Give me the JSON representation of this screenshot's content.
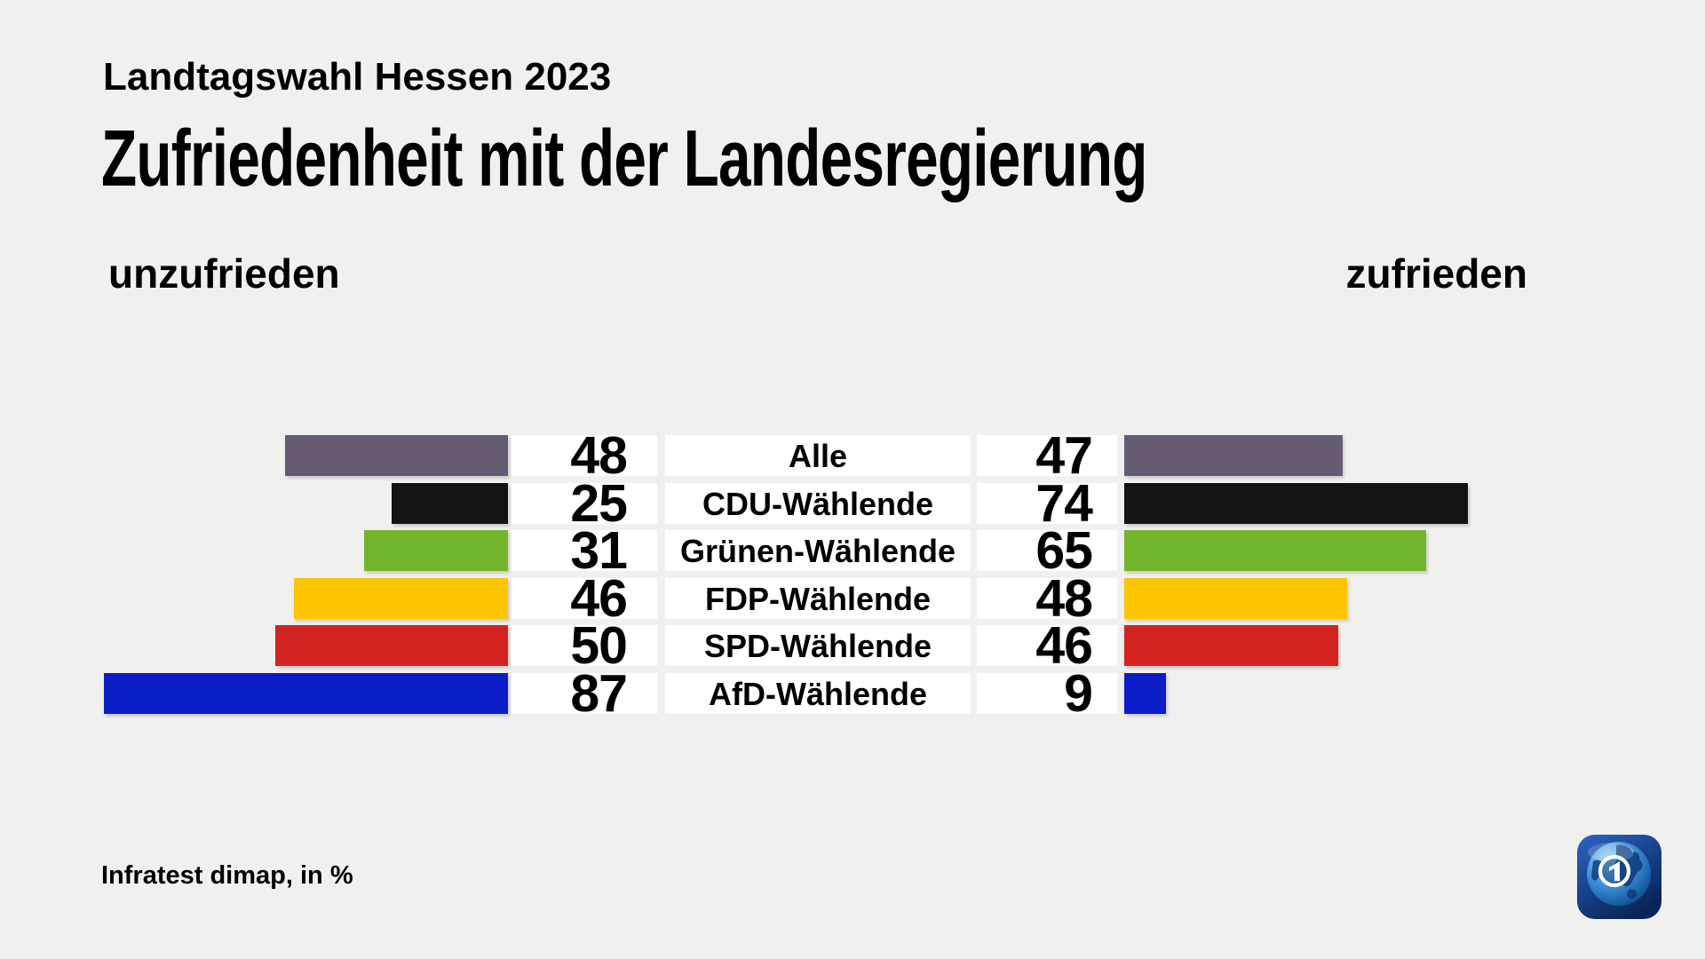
{
  "header": {
    "subtitle": "Landtagswahl Hessen 2023",
    "title": "Zufriedenheit mit der Landesregierung"
  },
  "axis": {
    "left_label": "unzufrieden",
    "right_label": "zufrieden"
  },
  "chart_data": {
    "type": "bar",
    "orientation": "diverging-horizontal",
    "unit": "%",
    "xlim": [
      0,
      100
    ],
    "grid": false,
    "legend_position": "top-axis-labels",
    "categories": [
      "Alle",
      "CDU-Wählende",
      "Grünen-Wählende",
      "FDP-Wählende",
      "SPD-Wählende",
      "AfD-Wählende"
    ],
    "series": [
      {
        "name": "unzufrieden",
        "values": [
          48,
          25,
          31,
          46,
          50,
          87
        ]
      },
      {
        "name": "zufrieden",
        "values": [
          47,
          74,
          65,
          48,
          46,
          9
        ]
      }
    ],
    "row_colors": [
      "#675a73",
      "#161413",
      "#71b52c",
      "#fdc500",
      "#d22321",
      "#0b1dc6"
    ]
  },
  "footer": {
    "source": "Infratest dimap, in %"
  },
  "logo_colors": {
    "tile_top": "#2b64c6",
    "tile_bottom": "#092558",
    "globe_light": "#9ed7f8",
    "globe_dark": "#0b3a74"
  },
  "page_background": "#f0f0ee"
}
